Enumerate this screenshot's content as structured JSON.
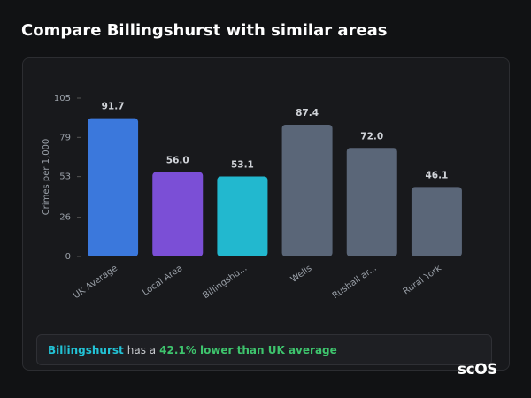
{
  "header": {
    "title": "Compare Billingshurst with similar areas"
  },
  "chart_data": {
    "type": "bar",
    "y_label": "Crimes per 1,000",
    "categories": [
      "UK Average",
      "Local Area",
      "Billingshu...",
      "Wells",
      "Rushall ar...",
      "Rural York"
    ],
    "values": [
      91.7,
      56.0,
      53.1,
      87.4,
      72.0,
      46.1
    ],
    "value_labels": [
      "91.7",
      "56.0",
      "53.1",
      "87.4",
      "72.0",
      "46.1"
    ],
    "colors": [
      "#3b78dc",
      "#7b4fd6",
      "#22b8cf",
      "#5a6678",
      "#5a6678",
      "#5a6678"
    ],
    "ylim": [
      0,
      105
    ],
    "yticks": [
      0,
      26,
      53,
      79,
      105
    ]
  },
  "summary": {
    "area": "Billingshurst",
    "text": "has a",
    "comparison": "42.1% lower than UK average"
  },
  "logo": "scOS"
}
